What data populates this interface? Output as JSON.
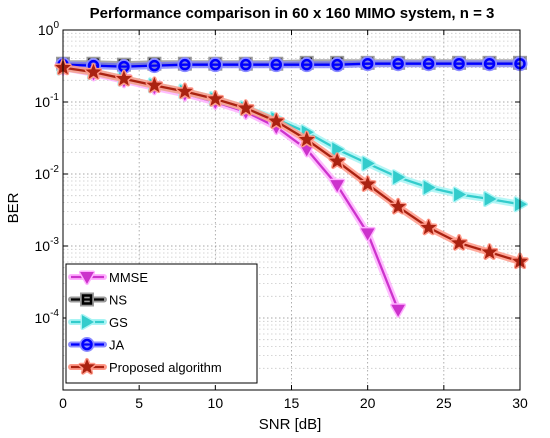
{
  "chart_data": {
    "type": "line",
    "title": "Performance comparison in 60 x 160 MIMO system, n = 3",
    "xlabel": "SNR [dB]",
    "ylabel": "BER",
    "xlim": [
      0,
      30
    ],
    "ylim": [
      1e-05,
      1
    ],
    "yscale": "log",
    "grid": true,
    "legend_position": "bottom-left",
    "x_ticks": [
      "0",
      "5",
      "10",
      "15",
      "20",
      "25",
      "30"
    ],
    "y_ticks": [
      {
        "base": "10",
        "exp": "0"
      },
      {
        "base": "10",
        "exp": "-1"
      },
      {
        "base": "10",
        "exp": "-2"
      },
      {
        "base": "10",
        "exp": "-3"
      },
      {
        "base": "10",
        "exp": "-4"
      }
    ],
    "series": [
      {
        "name": "MMSE",
        "color": "#cc33cc",
        "glow": "#ffb0ff",
        "marker": "triangle-down",
        "x": [
          0,
          2,
          4,
          6,
          8,
          10,
          12,
          14,
          16,
          18,
          20,
          22
        ],
        "y": [
          0.3,
          0.25,
          0.2,
          0.16,
          0.13,
          0.1,
          0.073,
          0.045,
          0.022,
          0.007,
          0.0015,
          0.00013
        ]
      },
      {
        "name": "NS",
        "color": "#000000",
        "glow": "#9a9a9a",
        "marker": "square",
        "x": [
          0,
          2,
          4,
          6,
          8,
          10,
          12,
          14,
          16,
          18,
          20,
          22,
          24,
          26,
          28,
          30
        ],
        "y": [
          0.34,
          0.34,
          0.33,
          0.34,
          0.34,
          0.34,
          0.34,
          0.34,
          0.35,
          0.35,
          0.35,
          0.35,
          0.35,
          0.35,
          0.35,
          0.35
        ]
      },
      {
        "name": "GS",
        "color": "#33cccc",
        "glow": "#a8f4f4",
        "marker": "triangle-right",
        "x": [
          0,
          2,
          4,
          6,
          8,
          10,
          12,
          14,
          16,
          18,
          20,
          22,
          24,
          26,
          28,
          30
        ],
        "y": [
          0.3,
          0.26,
          0.21,
          0.17,
          0.14,
          0.11,
          0.082,
          0.058,
          0.038,
          0.022,
          0.014,
          0.009,
          0.0065,
          0.0052,
          0.0045,
          0.0038
        ]
      },
      {
        "name": "JA",
        "color": "#0000ff",
        "glow": "#8c8cff",
        "marker": "circle",
        "x": [
          0,
          2,
          4,
          6,
          8,
          10,
          12,
          14,
          16,
          18,
          20,
          22,
          24,
          26,
          28,
          30
        ],
        "y": [
          0.33,
          0.32,
          0.31,
          0.32,
          0.33,
          0.33,
          0.33,
          0.33,
          0.33,
          0.33,
          0.34,
          0.34,
          0.34,
          0.34,
          0.34,
          0.34
        ]
      },
      {
        "name": "Proposed algorithm",
        "color": "#aa2211",
        "glow": "#ff9a8a",
        "marker": "star",
        "x": [
          0,
          2,
          4,
          6,
          8,
          10,
          12,
          14,
          16,
          18,
          20,
          22,
          24,
          26,
          28,
          30
        ],
        "y": [
          0.3,
          0.26,
          0.21,
          0.17,
          0.14,
          0.11,
          0.082,
          0.054,
          0.03,
          0.015,
          0.0072,
          0.0035,
          0.0018,
          0.0011,
          0.00082,
          0.00061
        ]
      }
    ]
  }
}
